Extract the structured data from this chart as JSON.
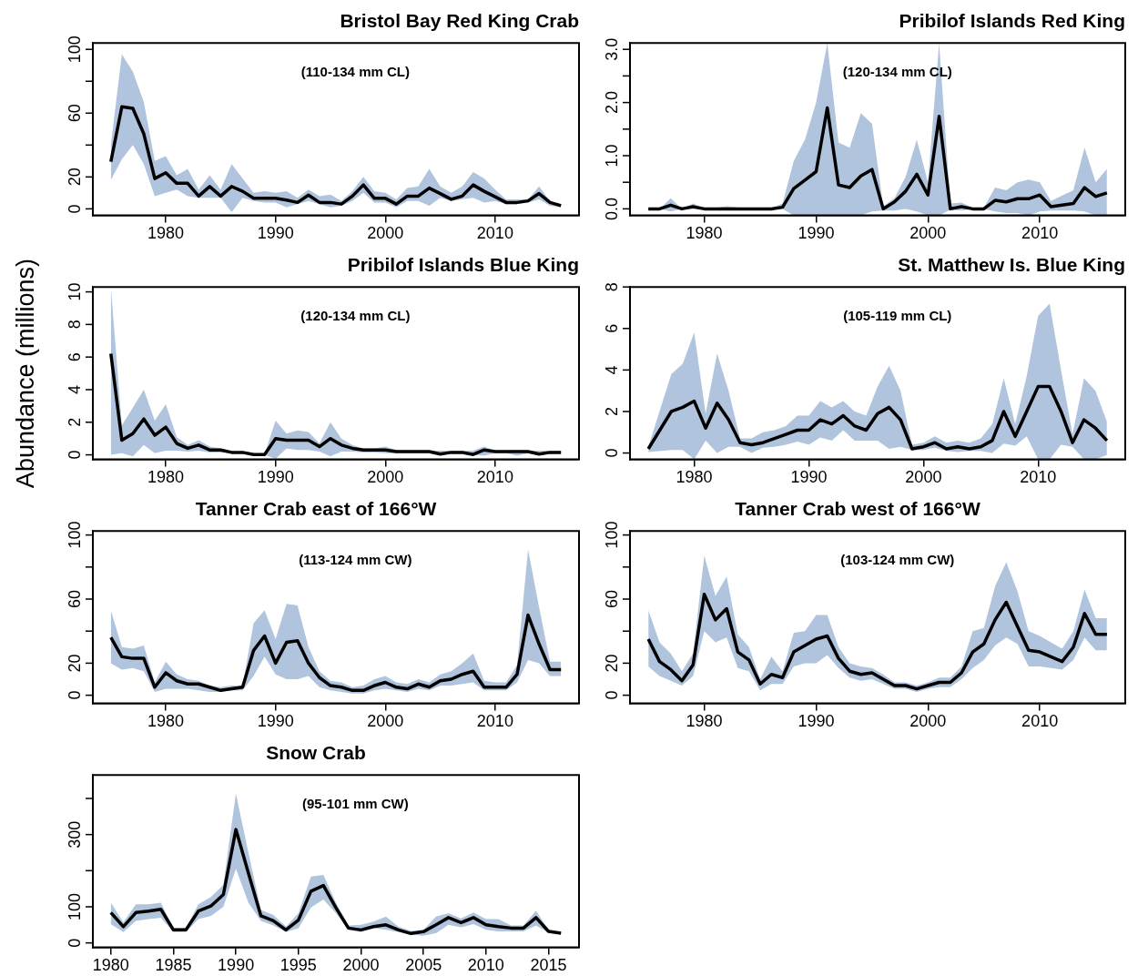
{
  "chart_data": [
    {
      "type": "line",
      "title": "Bristol Bay Red King Crab",
      "annotations": [
        "(110-134 mm CL)"
      ],
      "grid": false,
      "legend": false,
      "marker": "none",
      "xlim": [
        1973.36,
        2017.64
      ],
      "xticks": [
        1980,
        1990,
        2000,
        2010
      ],
      "ylim": [
        -4,
        104
      ],
      "yticks": [
        0,
        20,
        {
          "value": 40,
          "label": null
        },
        60,
        {
          "value": 80,
          "label": null
        },
        100
      ],
      "x": [
        1975,
        1976,
        1977,
        1978,
        1979,
        1980,
        1981,
        1982,
        1983,
        1984,
        1985,
        1986,
        1987,
        1988,
        1989,
        1990,
        1991,
        1992,
        1993,
        1994,
        1995,
        1996,
        1997,
        1998,
        1999,
        2000,
        2001,
        2002,
        2003,
        2004,
        2005,
        2006,
        2007,
        2008,
        2009,
        2010,
        2011,
        2012,
        2013,
        2014,
        2015,
        2016
      ],
      "series": [
        {
          "type": "line",
          "color": "#000000",
          "values": [
            29.6,
            64,
            63,
            47,
            19,
            22.6,
            16,
            16,
            8,
            14,
            8,
            14,
            11,
            6.6,
            6.6,
            6.6,
            5.5,
            4,
            8.6,
            4,
            4,
            3,
            8,
            15,
            6.6,
            6.6,
            3,
            8,
            8,
            13,
            9.6,
            6,
            8,
            15,
            11,
            7.6,
            4,
            4,
            5,
            9.6,
            4,
            2
          ],
          "upper": [
            40,
            97,
            86,
            67,
            30,
            33,
            21,
            25,
            12,
            21,
            12,
            28,
            19,
            10,
            11,
            10,
            11,
            7,
            12,
            8,
            9,
            5,
            11,
            20,
            11,
            10,
            6,
            13,
            14,
            25,
            14,
            10,
            14,
            23,
            19,
            12,
            6,
            6,
            6,
            14,
            5,
            3
          ],
          "lower": [
            18,
            31,
            40,
            28,
            8,
            10,
            12,
            8,
            7,
            7,
            7,
            -2,
            7,
            5,
            4,
            4,
            1,
            3,
            5,
            3,
            1,
            2,
            5,
            10,
            4,
            4,
            1,
            5,
            5,
            2,
            7,
            5,
            6,
            7,
            4,
            5,
            3,
            3,
            4,
            6,
            2,
            1
          ]
        }
      ]
    },
    {
      "type": "line",
      "title": "Pribilof Islands Red King",
      "annotations": [
        "(120-134 mm CL)"
      ],
      "grid": false,
      "legend": false,
      "marker": "none",
      "xlim": [
        1973.36,
        2017.64
      ],
      "xticks": [
        1980,
        1990,
        2000,
        2010
      ],
      "ylim": [
        -0.12,
        3.12
      ],
      "yticks": [
        {
          "value": 0,
          "label": "0.0"
        },
        {
          "value": 0.5,
          "label": null
        },
        {
          "value": 1,
          "label": "1.0"
        },
        {
          "value": 1.5,
          "label": null
        },
        {
          "value": 2,
          "label": "2.0"
        },
        {
          "value": 2.5,
          "label": null
        },
        {
          "value": 3,
          "label": "3.0"
        }
      ],
      "x": [
        1975,
        1976,
        1977,
        1978,
        1979,
        1980,
        1981,
        1982,
        1983,
        1984,
        1985,
        1986,
        1987,
        1988,
        1989,
        1990,
        1991,
        1992,
        1993,
        1994,
        1995,
        1996,
        1997,
        1998,
        1999,
        2000,
        2001,
        2002,
        2003,
        2004,
        2005,
        2006,
        2007,
        2008,
        2009,
        2010,
        2011,
        2012,
        2013,
        2014,
        2015,
        2016
      ],
      "series": [
        {
          "type": "line",
          "color": "#000000",
          "values": [
            0,
            0,
            0.07,
            0,
            0.04,
            0,
            0,
            0,
            0,
            0,
            0,
            0,
            0.03,
            0.38,
            0.54,
            0.7,
            1.9,
            0.45,
            0.4,
            0.62,
            0.74,
            0,
            0.13,
            0.33,
            0.65,
            0.26,
            1.74,
            0,
            0.04,
            0,
            0,
            0.16,
            0.13,
            0.19,
            0.19,
            0.26,
            0.04,
            0.07,
            0.1,
            0.4,
            0.23,
            0.3
          ],
          "upper": [
            0,
            0,
            0.2,
            0,
            0.1,
            0.02,
            0.02,
            0.05,
            0.03,
            0.02,
            0.02,
            0.02,
            0.1,
            0.9,
            1.3,
            2.0,
            3.12,
            1.25,
            1.15,
            1.8,
            1.6,
            0.05,
            0.2,
            0.6,
            1.3,
            0.5,
            3.12,
            0.1,
            0.12,
            0.02,
            0.02,
            0.4,
            0.35,
            0.5,
            0.55,
            0.5,
            0.15,
            0.25,
            0.35,
            1.15,
            0.5,
            0.75
          ],
          "lower": [
            0,
            0,
            -0.05,
            0,
            0,
            0,
            0,
            0,
            0,
            0,
            0,
            0,
            0,
            -0.12,
            -0.12,
            -0.12,
            -0.12,
            -0.12,
            -0.12,
            -0.12,
            -0.05,
            -0.03,
            -0.03,
            0,
            -0.05,
            -0.12,
            -0.12,
            -0.02,
            -0.03,
            0,
            0,
            -0.05,
            -0.08,
            -0.08,
            -0.12,
            -0.05,
            -0.03,
            -0.03,
            -0.03,
            -0.05,
            -0.12,
            -0.12
          ]
        }
      ]
    },
    {
      "type": "line",
      "title": "Pribilof Islands Blue King",
      "ylabel": "Abundance (millions)",
      "annotations": [
        "(120-134 mm CL)"
      ],
      "grid": false,
      "legend": false,
      "marker": "none",
      "xlim": [
        1973.36,
        2017.64
      ],
      "xticks": [
        1980,
        1990,
        2000,
        2010
      ],
      "ylim": [
        -0.27,
        10.3
      ],
      "yticks": [
        0,
        2,
        4,
        6,
        8,
        10
      ],
      "x": [
        1975,
        1976,
        1977,
        1978,
        1979,
        1980,
        1981,
        1982,
        1983,
        1984,
        1985,
        1986,
        1987,
        1988,
        1989,
        1990,
        1991,
        1992,
        1993,
        1994,
        1995,
        1996,
        1997,
        1998,
        1999,
        2000,
        2001,
        2002,
        2003,
        2004,
        2005,
        2006,
        2007,
        2008,
        2009,
        2010,
        2011,
        2012,
        2013,
        2014,
        2015,
        2016
      ],
      "series": [
        {
          "type": "line",
          "color": "#000000",
          "values": [
            6.2,
            0.9,
            1.3,
            2.2,
            1.2,
            1.7,
            0.7,
            0.4,
            0.6,
            0.3,
            0.3,
            0.15,
            0.15,
            0.02,
            0.02,
            1.0,
            0.9,
            0.9,
            0.9,
            0.5,
            1.0,
            0.6,
            0.4,
            0.3,
            0.3,
            0.3,
            0.2,
            0.2,
            0.2,
            0.2,
            0.05,
            0.15,
            0.15,
            0.02,
            0.3,
            0.2,
            0.2,
            0.2,
            0.2,
            0.05,
            0.15,
            0.15
          ],
          "upper": [
            10.3,
            1.8,
            2.9,
            4.0,
            2.1,
            3.1,
            1.1,
            0.6,
            0.9,
            0.5,
            0.4,
            0.2,
            0.2,
            0.05,
            0.05,
            2.1,
            1.3,
            1.5,
            1.4,
            0.7,
            2.0,
            1.0,
            0.6,
            0.4,
            0.4,
            0.5,
            0.3,
            0.25,
            0.25,
            0.25,
            0.25,
            0.25,
            0.25,
            0.25,
            0.5,
            0.25,
            0.25,
            0.3,
            0.25,
            0.25,
            0.25,
            0.25
          ],
          "lower": [
            0,
            0.1,
            -0.1,
            0.6,
            0.1,
            0.25,
            0.25,
            0.2,
            0.25,
            0.15,
            0.15,
            0.1,
            0.1,
            0,
            0,
            -0.25,
            0.4,
            0.3,
            0.3,
            0.2,
            -0.1,
            0.2,
            0.2,
            0.15,
            0.15,
            0.1,
            0.1,
            0.1,
            0.1,
            0.1,
            0,
            0.1,
            0.1,
            0,
            -0.05,
            0.1,
            0.1,
            -0.05,
            0.1,
            0,
            0.1,
            0.1
          ]
        }
      ]
    },
    {
      "type": "line",
      "title": "St. Matthew Is. Blue King",
      "annotations": [
        "(105-119 mm CL)"
      ],
      "grid": false,
      "legend": false,
      "marker": "none",
      "xlim": [
        1974.4,
        2017.6
      ],
      "xticks": [
        1980,
        1990,
        2000,
        2010
      ],
      "ylim": [
        -0.3,
        8
      ],
      "yticks": [
        0,
        2,
        4,
        6,
        8
      ],
      "x": [
        1976,
        1978,
        1979,
        1980,
        1981,
        1982,
        1983,
        1984,
        1985,
        1986,
        1987,
        1988,
        1989,
        1990,
        1991,
        1992,
        1993,
        1994,
        1995,
        1996,
        1997,
        1998,
        1999,
        2000,
        2001,
        2002,
        2003,
        2004,
        2005,
        2006,
        2007,
        2008,
        2009,
        2010,
        2011,
        2012,
        2013,
        2014,
        2015,
        2016
      ],
      "series": [
        {
          "type": "line",
          "color": "#000000",
          "values": [
            0.2,
            2.0,
            2.2,
            2.5,
            1.2,
            2.4,
            1.6,
            0.5,
            0.4,
            0.5,
            0.7,
            0.9,
            1.1,
            1.1,
            1.6,
            1.4,
            1.8,
            1.3,
            1.1,
            1.9,
            2.2,
            1.6,
            0.2,
            0.3,
            0.5,
            0.2,
            0.3,
            0.2,
            0.3,
            0.6,
            2.0,
            0.8,
            2.0,
            3.2,
            3.2,
            2.0,
            0.5,
            1.6,
            1.2,
            0.6
          ],
          "upper": [
            0.3,
            3.8,
            4.3,
            5.8,
            1.9,
            4.8,
            3.0,
            0.7,
            0.7,
            1.0,
            1.1,
            1.3,
            1.8,
            1.8,
            2.5,
            2.2,
            2.5,
            2.0,
            1.8,
            3.2,
            4.2,
            3.0,
            0.4,
            0.5,
            0.8,
            0.5,
            0.6,
            0.5,
            0.7,
            1.4,
            3.6,
            1.4,
            3.7,
            6.6,
            7.2,
            4.0,
            0.9,
            3.6,
            3.0,
            1.5
          ],
          "lower": [
            0.05,
            0.15,
            0.15,
            -0.3,
            0.6,
            0,
            0.3,
            0.3,
            0,
            0.25,
            0.3,
            0.4,
            0.55,
            0.4,
            0.75,
            0.6,
            1.1,
            0.6,
            0.6,
            0.6,
            0.2,
            0.3,
            0.15,
            0.15,
            0.25,
            0.1,
            0.05,
            0.1,
            0.1,
            0,
            0.45,
            0.35,
            0.8,
            -0.3,
            -0.3,
            0.4,
            0.3,
            -0.3,
            -0.3,
            -0.1
          ]
        }
      ]
    },
    {
      "type": "line",
      "title": "Tanner Crab east of 166°W",
      "annotations": [
        "(113-124 mm CW)"
      ],
      "grid": false,
      "legend": false,
      "marker": "none",
      "xlim": [
        1973.36,
        2017.64
      ],
      "xticks": [
        1980,
        1990,
        2000,
        2010
      ],
      "ylim": [
        -5,
        102.5
      ],
      "yticks": [
        0,
        20,
        {
          "value": 40,
          "label": null
        },
        60,
        {
          "value": 80,
          "label": null
        },
        100
      ],
      "x": [
        1975,
        1976,
        1977,
        1978,
        1979,
        1980,
        1981,
        1982,
        1983,
        1984,
        1985,
        1986,
        1987,
        1988,
        1989,
        1990,
        1991,
        1992,
        1993,
        1994,
        1995,
        1996,
        1997,
        1998,
        1999,
        2000,
        2001,
        2002,
        2003,
        2004,
        2005,
        2006,
        2007,
        2008,
        2009,
        2010,
        2011,
        2012,
        2013,
        2014,
        2015,
        2016
      ],
      "series": [
        {
          "type": "line",
          "color": "#000000",
          "values": [
            36,
            24,
            23,
            23,
            5,
            14,
            9,
            7,
            7,
            5,
            3,
            4,
            5,
            28,
            37,
            20,
            33,
            34,
            20,
            11,
            6,
            5,
            3,
            3,
            6,
            8,
            5,
            4,
            7,
            5,
            9,
            10,
            13,
            15,
            5,
            5,
            5,
            13,
            50,
            32,
            16,
            16
          ],
          "upper": [
            53,
            30,
            29,
            31,
            8,
            21,
            13,
            10,
            9,
            6,
            5,
            6,
            6,
            45,
            53,
            35,
            57,
            56,
            30,
            15,
            9,
            8,
            5,
            6,
            10,
            12,
            8,
            7,
            10,
            8,
            13,
            15,
            20,
            26,
            9,
            8,
            8,
            19,
            91,
            55,
            21,
            21
          ],
          "lower": [
            20,
            16,
            17,
            15,
            2,
            4,
            4,
            4,
            3,
            2,
            2,
            3,
            3,
            12,
            24,
            13,
            10,
            10,
            12,
            5,
            3,
            2,
            1,
            1,
            3,
            4,
            3,
            2,
            4,
            3,
            6,
            6,
            7,
            8,
            3,
            3,
            3,
            8,
            22,
            20,
            12,
            12
          ]
        }
      ]
    },
    {
      "type": "line",
      "title": "Tanner Crab west of 166°W",
      "annotations": [
        "(103-124 mm CW)"
      ],
      "grid": false,
      "legend": false,
      "marker": "none",
      "xlim": [
        1973.36,
        2017.64
      ],
      "xticks": [
        1980,
        1990,
        2000,
        2010
      ],
      "ylim": [
        -5,
        102.5
      ],
      "yticks": [
        0,
        20,
        {
          "value": 40,
          "label": null
        },
        60,
        {
          "value": 80,
          "label": null
        },
        100
      ],
      "x": [
        1975,
        1976,
        1977,
        1978,
        1979,
        1980,
        1981,
        1982,
        1983,
        1984,
        1985,
        1986,
        1987,
        1988,
        1989,
        1990,
        1991,
        1992,
        1993,
        1994,
        1995,
        1996,
        1997,
        1998,
        1999,
        2000,
        2001,
        2002,
        2003,
        2004,
        2005,
        2006,
        2007,
        2008,
        2009,
        2010,
        2011,
        2012,
        2013,
        2014,
        2015,
        2016
      ],
      "series": [
        {
          "type": "line",
          "color": "#000000",
          "values": [
            35,
            21,
            16,
            9,
            19,
            63,
            47,
            54,
            27,
            22,
            7,
            13,
            11,
            27,
            31,
            35,
            37,
            23,
            15,
            13,
            14,
            10,
            6,
            6,
            4,
            6,
            8,
            8,
            14,
            27,
            32,
            47,
            58,
            43,
            28,
            27,
            24,
            21,
            30,
            51,
            38,
            38
          ],
          "upper": [
            53,
            33,
            26,
            15,
            26,
            87,
            62,
            74,
            38,
            30,
            10,
            24,
            15,
            39,
            40,
            50,
            50,
            30,
            20,
            18,
            17,
            13,
            8,
            8,
            6,
            8,
            11,
            11,
            18,
            40,
            42,
            68,
            83,
            65,
            40,
            37,
            33,
            29,
            40,
            66,
            48,
            48
          ],
          "lower": [
            18,
            12,
            9,
            6,
            12,
            40,
            33,
            36,
            17,
            15,
            3,
            7,
            7,
            18,
            20,
            20,
            25,
            17,
            11,
            9,
            10,
            7,
            4,
            4,
            2,
            4,
            5,
            5,
            10,
            17,
            22,
            31,
            36,
            32,
            18,
            18,
            17,
            16,
            22,
            36,
            28,
            28
          ]
        }
      ]
    },
    {
      "type": "line",
      "title": "Snow Crab",
      "annotations": [
        "(95-101 mm CW)"
      ],
      "grid": false,
      "legend": false,
      "marker": "none",
      "xlim": [
        1978.56,
        2017.44
      ],
      "xticks": [
        1980,
        1985,
        1990,
        1995,
        2000,
        2005,
        2010,
        2015
      ],
      "ylim": [
        -12,
        465
      ],
      "yticks": [
        0,
        100,
        {
          "value": 200,
          "label": null
        },
        300,
        {
          "value": 400,
          "label": null
        }
      ],
      "x": [
        1980,
        1981,
        1982,
        1983,
        1984,
        1985,
        1986,
        1987,
        1988,
        1989,
        1990,
        1991,
        1992,
        1993,
        1994,
        1995,
        1996,
        1997,
        1998,
        1999,
        2000,
        2001,
        2002,
        2003,
        2004,
        2005,
        2006,
        2007,
        2008,
        2009,
        2010,
        2011,
        2012,
        2013,
        2014,
        2015,
        2016
      ],
      "series": [
        {
          "type": "line",
          "color": "#000000",
          "values": [
            84,
            45,
            84,
            88,
            93,
            36,
            36,
            88,
            102,
            134,
            314,
            193,
            75,
            61,
            36,
            63,
            143,
            159,
            97,
            41,
            36,
            45,
            50,
            36,
            26,
            31,
            50,
            70,
            56,
            70,
            50,
            45,
            41,
            41,
            70,
            32,
            27
          ],
          "upper": [
            111,
            57,
            107,
            107,
            111,
            41,
            41,
            107,
            127,
            161,
            414,
            250,
            91,
            77,
            45,
            82,
            184,
            188,
            111,
            48,
            50,
            59,
            73,
            45,
            33,
            36,
            73,
            82,
            68,
            84,
            66,
            66,
            48,
            48,
            89,
            36,
            30
          ],
          "lower": [
            52,
            30,
            61,
            66,
            70,
            30,
            30,
            66,
            75,
            100,
            205,
            111,
            61,
            48,
            30,
            41,
            98,
            120,
            82,
            36,
            30,
            41,
            36,
            30,
            23,
            20,
            27,
            50,
            43,
            52,
            36,
            32,
            32,
            32,
            48,
            28,
            24
          ]
        }
      ]
    }
  ]
}
